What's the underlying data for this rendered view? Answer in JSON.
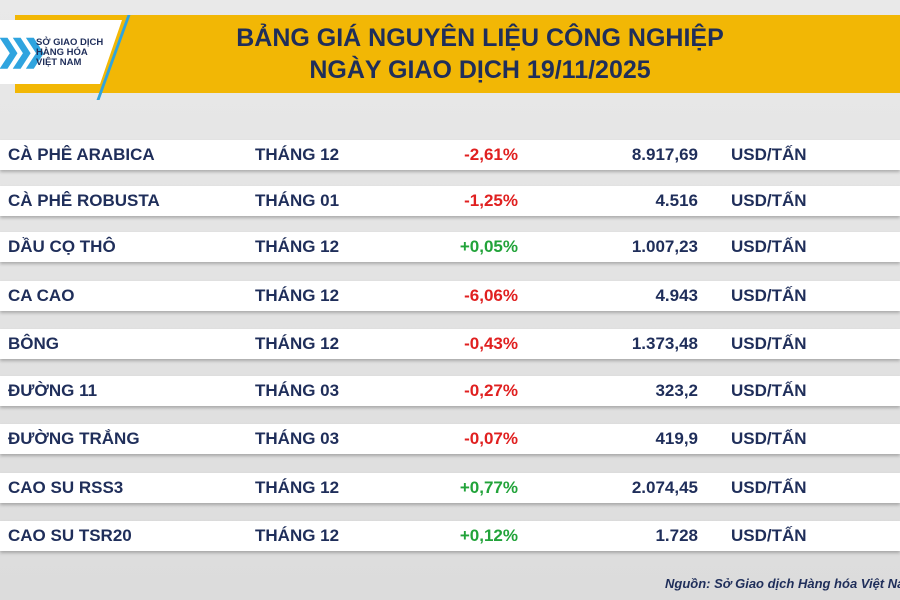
{
  "logo": {
    "line1": "SỞ GIAO DỊCH",
    "line2": "HÀNG HÓA",
    "line3": "VIỆT NAM"
  },
  "title": {
    "line1": "BẢNG GIÁ NGUYÊN LIỆU CÔNG NGHIỆP",
    "line2": "NGÀY GIAO DỊCH 19/11/2025"
  },
  "colors": {
    "negative": "#e02020",
    "positive": "#22a33a",
    "banner": "#f2b705",
    "text": "#1f2e5a"
  },
  "rows": [
    {
      "name": "CÀ PHÊ ARABICA",
      "month": "THÁNG 12",
      "change": "-2,61%",
      "price": "8.917,69",
      "unit": "USD/TẤN"
    },
    {
      "name": "CÀ PHÊ ROBUSTA",
      "month": "THÁNG 01",
      "change": "-1,25%",
      "price": "4.516",
      "unit": "USD/TẤN"
    },
    {
      "name": "DẦU CỌ THÔ",
      "month": "THÁNG 12",
      "change": "+0,05%",
      "price": "1.007,23",
      "unit": "USD/TẤN"
    },
    {
      "name": "CA CAO",
      "month": "THÁNG 12",
      "change": "-6,06%",
      "price": "4.943",
      "unit": "USD/TẤN"
    },
    {
      "name": "BÔNG",
      "month": "THÁNG 12",
      "change": "-0,43%",
      "price": "1.373,48",
      "unit": "USD/TẤN"
    },
    {
      "name": "ĐƯỜNG 11",
      "month": "THÁNG 03",
      "change": "-0,27%",
      "price": "323,2",
      "unit": "USD/TẤN"
    },
    {
      "name": "ĐƯỜNG TRẮNG",
      "month": "THÁNG 03",
      "change": "-0,07%",
      "price": "419,9",
      "unit": "USD/TẤN"
    },
    {
      "name": "CAO SU RSS3",
      "month": "THÁNG 12",
      "change": "+0,77%",
      "price": "2.074,45",
      "unit": "USD/TẤN"
    },
    {
      "name": "CAO SU TSR20",
      "month": "THÁNG 12",
      "change": "+0,12%",
      "price": "1.728",
      "unit": "USD/TẤN"
    }
  ],
  "source": "Nguồn: Sở Giao dịch Hàng hóa Việt Nam"
}
